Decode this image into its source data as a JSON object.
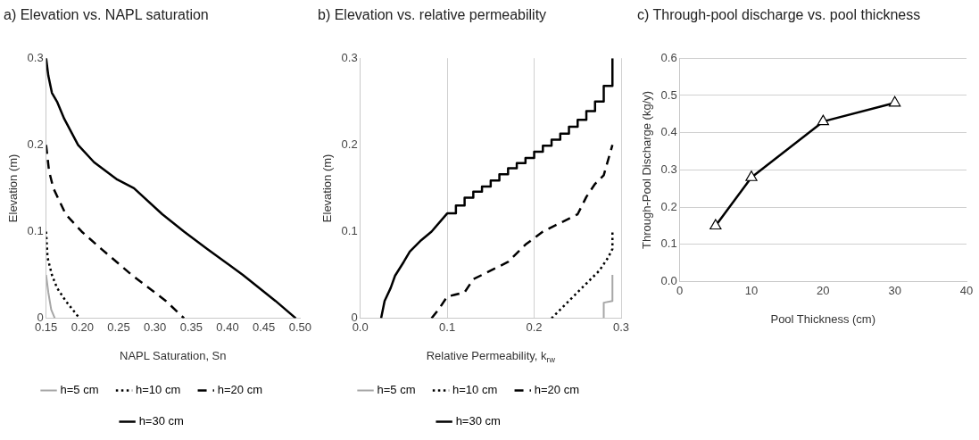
{
  "chart_data": [
    {
      "type": "line",
      "title": "a) Elevation vs. NAPL saturation",
      "xlabel": "NAPL Saturation, Sn",
      "ylabel": "Elevation (m)",
      "xlim": [
        0.15,
        0.5
      ],
      "ylim": [
        0,
        0.3
      ],
      "xticks": [
        0.15,
        {
          "value": 0.2,
          "label": "0.20"
        },
        0.25,
        {
          "value": 0.3,
          "label": "0.30"
        },
        0.35,
        {
          "value": 0.4,
          "label": "0.40"
        },
        0.45,
        {
          "value": 0.5,
          "label": "0.50"
        }
      ],
      "yticks": [
        0,
        0.1,
        0.2,
        0.3
      ],
      "grid": false,
      "legend": "bottom",
      "marker": "none",
      "series": [
        {
          "name": "h=5 cm",
          "color": "#a6a6a6",
          "line_style": "solid",
          "x": [
            0.15,
            0.153,
            0.157,
            0.162
          ],
          "values": [
            0.05,
            0.03,
            0.01,
            0
          ]
        },
        {
          "name": "h=10 cm",
          "color": "#000000",
          "line_style": "dotted",
          "x": [
            0.15,
            0.152,
            0.158,
            0.165,
            0.177,
            0.196
          ],
          "values": [
            0.1,
            0.07,
            0.05,
            0.035,
            0.02,
            0
          ]
        },
        {
          "name": "h=20 cm",
          "color": "#000000",
          "line_style": "dashed",
          "x": [
            0.15,
            0.154,
            0.16,
            0.177,
            0.199,
            0.226,
            0.268,
            0.315,
            0.34
          ],
          "values": [
            0.2,
            0.17,
            0.15,
            0.12,
            0.1,
            0.08,
            0.05,
            0.02,
            0
          ]
        },
        {
          "name": "h=30 cm",
          "color": "#000000",
          "line_style": "solid",
          "x": [
            0.15,
            0.153,
            0.158,
            0.165,
            0.175,
            0.194,
            0.216,
            0.248,
            0.271,
            0.31,
            0.34,
            0.372,
            0.421,
            0.466,
            0.494
          ],
          "values": [
            0.3,
            0.28,
            0.26,
            0.25,
            0.23,
            0.2,
            0.18,
            0.16,
            0.15,
            0.12,
            0.1,
            0.08,
            0.05,
            0.02,
            0
          ]
        }
      ]
    },
    {
      "type": "line",
      "title": "b) Elevation vs. relative permeability",
      "xlabel": "Relative Permeability, k$_{rw}$",
      "ylabel": "Elevation (m)",
      "xlim": [
        0,
        0.3
      ],
      "ylim": [
        0,
        0.3
      ],
      "xticks": [
        {
          "value": 0,
          "label": "0.0"
        },
        0.1,
        0.2,
        0.3
      ],
      "yticks": [
        0,
        0.1,
        0.2,
        0.3
      ],
      "grid": "x",
      "legend": "bottom",
      "marker": "none",
      "series": [
        {
          "name": "h=5 cm",
          "color": "#a6a6a6",
          "line_style": "solid",
          "x": [
            0.28,
            0.28,
            0.29,
            0.29
          ],
          "values": [
            0,
            0.018,
            0.02,
            0.05
          ]
        },
        {
          "name": "h=10 cm",
          "color": "#000000",
          "line_style": "dotted",
          "x": [
            0.22,
            0.23,
            0.245,
            0.26,
            0.275,
            0.285,
            0.29,
            0.29
          ],
          "values": [
            0,
            0.01,
            0.025,
            0.04,
            0.055,
            0.07,
            0.08,
            0.1
          ]
        },
        {
          "name": "h=20 cm",
          "color": "#000000",
          "line_style": "dashed",
          "x": [
            0.082,
            0.09,
            0.1,
            0.12,
            0.13,
            0.15,
            0.17,
            0.19,
            0.21,
            0.23,
            0.25,
            0.26,
            0.27,
            0.28,
            0.29
          ],
          "values": [
            0,
            0.01,
            0.025,
            0.03,
            0.045,
            0.055,
            0.065,
            0.085,
            0.1,
            0.11,
            0.12,
            0.14,
            0.155,
            0.165,
            0.2
          ]
        },
        {
          "name": "h=30 cm",
          "color": "#000000",
          "line_style": "solid",
          "x": [
            0.024,
            0.028,
            0.035,
            0.04,
            0.05,
            0.057,
            0.07,
            0.082,
            0.1,
            0.11,
            0.11,
            0.12,
            0.12,
            0.13,
            0.13,
            0.14,
            0.14,
            0.15,
            0.15,
            0.16,
            0.16,
            0.17,
            0.17,
            0.18,
            0.18,
            0.19,
            0.19,
            0.2,
            0.2,
            0.21,
            0.21,
            0.22,
            0.22,
            0.23,
            0.23,
            0.24,
            0.24,
            0.25,
            0.25,
            0.26,
            0.26,
            0.27,
            0.27,
            0.28,
            0.28,
            0.29,
            0.29
          ],
          "values": [
            0,
            0.02,
            0.035,
            0.049,
            0.065,
            0.077,
            0.09,
            0.1,
            0.121,
            0.121,
            0.13,
            0.13,
            0.139,
            0.139,
            0.146,
            0.146,
            0.152,
            0.152,
            0.159,
            0.159,
            0.166,
            0.166,
            0.173,
            0.173,
            0.179,
            0.179,
            0.185,
            0.185,
            0.192,
            0.192,
            0.199,
            0.199,
            0.206,
            0.206,
            0.213,
            0.213,
            0.221,
            0.221,
            0.229,
            0.229,
            0.239,
            0.239,
            0.25,
            0.25,
            0.268,
            0.268,
            0.3
          ]
        }
      ]
    },
    {
      "type": "line",
      "title": "c) Through-pool discharge vs. pool thickness",
      "xlabel": "Pool Thickness (cm)",
      "ylabel": "Through-Pool Discharge (kg/y)",
      "xlim": [
        0,
        40
      ],
      "ylim": [
        0,
        0.6
      ],
      "xticks": [
        0,
        10,
        20,
        30,
        40
      ],
      "yticks": [
        {
          "value": 0,
          "label": "0.0"
        },
        0.1,
        0.2,
        0.3,
        0.4,
        0.5,
        0.6
      ],
      "grid": "y",
      "marker": "triangle",
      "series": [
        {
          "color": "#000000",
          "line_style": "solid",
          "x": [
            5,
            10,
            20,
            30
          ],
          "values": [
            0.15,
            0.28,
            0.43,
            0.48
          ]
        }
      ]
    }
  ]
}
